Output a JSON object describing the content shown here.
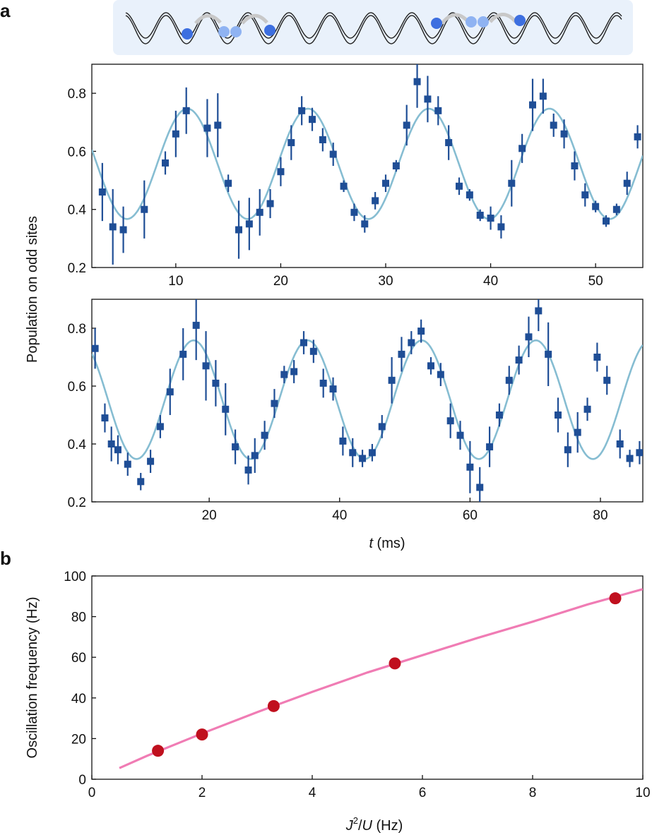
{
  "panel_labels": {
    "a": "a",
    "b": "b"
  },
  "colors": {
    "marker_a": "#1f4e96",
    "fit_a": "#86bdd2",
    "marker_b": "#c0101e",
    "fit_b": "#f07cb4",
    "schematic_bg": "#e9f1fb",
    "atom_dark": "#3d6fe0",
    "atom_light": "#8fb3f2"
  },
  "chart_data": [
    {
      "id": "a-top",
      "type": "scatter",
      "title": "",
      "xlabel": "",
      "ylabel": "Population on odd sites",
      "xlim": [
        2,
        54.5
      ],
      "ylim": [
        0.2,
        0.9
      ],
      "xticks": [
        10,
        20,
        30,
        40,
        50
      ],
      "yticks": [
        0.2,
        0.4,
        0.6,
        0.8
      ],
      "ytick_labels": [
        "0.2",
        "0.4",
        "0.6",
        "0.8"
      ],
      "fit": {
        "mean": 0.557,
        "amplitude": 0.19,
        "period_ms": 11.5,
        "peak_t_ms": 11.1
      },
      "x": [
        3,
        4,
        5,
        7,
        9,
        10,
        11,
        13,
        14,
        15,
        16,
        17,
        18,
        19,
        20,
        21,
        22,
        23,
        24,
        25,
        26,
        27,
        28,
        29,
        30,
        31,
        32,
        33,
        34,
        35,
        36,
        37,
        38,
        39,
        40,
        41,
        42,
        43,
        44,
        45,
        46,
        47,
        48,
        49,
        50,
        51,
        52,
        53,
        54
      ],
      "y": [
        0.46,
        0.34,
        0.33,
        0.4,
        0.56,
        0.66,
        0.74,
        0.68,
        0.69,
        0.49,
        0.33,
        0.35,
        0.39,
        0.42,
        0.53,
        0.63,
        0.74,
        0.71,
        0.64,
        0.59,
        0.48,
        0.39,
        0.35,
        0.43,
        0.49,
        0.55,
        0.69,
        0.84,
        0.78,
        0.74,
        0.63,
        0.48,
        0.45,
        0.38,
        0.37,
        0.34,
        0.49,
        0.61,
        0.76,
        0.79,
        0.69,
        0.66,
        0.55,
        0.45,
        0.41,
        0.36,
        0.4,
        0.49,
        0.65
      ],
      "yerr": [
        0.1,
        0.13,
        0.08,
        0.1,
        0.04,
        0.08,
        0.08,
        0.1,
        0.11,
        0.03,
        0.1,
        0.09,
        0.08,
        0.05,
        0.05,
        0.06,
        0.05,
        0.04,
        0.04,
        0.04,
        0.02,
        0.03,
        0.03,
        0.03,
        0.03,
        0.02,
        0.07,
        0.09,
        0.08,
        0.05,
        0.06,
        0.03,
        0.02,
        0.02,
        0.04,
        0.04,
        0.08,
        0.05,
        0.09,
        0.06,
        0.04,
        0.05,
        0.05,
        0.04,
        0.02,
        0.02,
        0.02,
        0.04,
        0.04
      ]
    },
    {
      "id": "a-bottom",
      "type": "scatter",
      "title": "",
      "xlabel": "t (ms)",
      "ylabel": "Population on odd sites",
      "xlim": [
        2,
        86.5
      ],
      "ylim": [
        0.2,
        0.9
      ],
      "xticks": [
        20,
        40,
        60,
        80
      ],
      "yticks": [
        0.2,
        0.4,
        0.6,
        0.8
      ],
      "ytick_labels": [
        "0.2",
        "0.4",
        "0.6",
        "0.8"
      ],
      "fit": {
        "mean": 0.553,
        "amplitude": 0.205,
        "period_ms": 17.5,
        "peak_t_ms": 17.6
      },
      "x": [
        2.5,
        4,
        5,
        6,
        7.5,
        9.5,
        11,
        12.5,
        14,
        16,
        18,
        19.5,
        21,
        22.5,
        24,
        26,
        27,
        28.5,
        30,
        31.5,
        33,
        34.5,
        36,
        37.5,
        39,
        40.5,
        42,
        43.5,
        45,
        46.5,
        48,
        49.5,
        51,
        52.5,
        54,
        55.5,
        57,
        58.5,
        60,
        61.5,
        63,
        64.5,
        66,
        67.5,
        69,
        70.5,
        72,
        73.5,
        75,
        76.5,
        78,
        79.5,
        81,
        83,
        84.5,
        86
      ],
      "y": [
        0.73,
        0.49,
        0.4,
        0.38,
        0.33,
        0.27,
        0.34,
        0.46,
        0.58,
        0.71,
        0.81,
        0.67,
        0.61,
        0.52,
        0.39,
        0.31,
        0.36,
        0.43,
        0.54,
        0.64,
        0.65,
        0.75,
        0.72,
        0.61,
        0.59,
        0.41,
        0.37,
        0.35,
        0.37,
        0.46,
        0.62,
        0.71,
        0.75,
        0.79,
        0.67,
        0.64,
        0.48,
        0.43,
        0.32,
        0.25,
        0.39,
        0.5,
        0.62,
        0.69,
        0.77,
        0.86,
        0.71,
        0.5,
        0.38,
        0.44,
        0.52,
        0.7,
        0.62,
        0.4,
        0.35,
        0.37
      ],
      "yerr": [
        0.07,
        0.05,
        0.06,
        0.05,
        0.04,
        0.03,
        0.04,
        0.04,
        0.08,
        0.09,
        0.12,
        0.12,
        0.08,
        0.09,
        0.06,
        0.05,
        0.06,
        0.05,
        0.05,
        0.03,
        0.04,
        0.04,
        0.04,
        0.05,
        0.04,
        0.05,
        0.05,
        0.03,
        0.03,
        0.04,
        0.08,
        0.06,
        0.04,
        0.04,
        0.03,
        0.04,
        0.06,
        0.05,
        0.09,
        0.07,
        0.07,
        0.04,
        0.05,
        0.05,
        0.07,
        0.07,
        0.11,
        0.06,
        0.06,
        0.07,
        0.04,
        0.05,
        0.05,
        0.05,
        0.03,
        0.04
      ]
    },
    {
      "id": "b",
      "type": "scatter",
      "title": "",
      "xlabel": "J²/U (Hz)",
      "ylabel": "Oscillation frequency (Hz)",
      "xlim": [
        0,
        10
      ],
      "ylim": [
        0,
        100
      ],
      "xticks": [
        0,
        2,
        4,
        6,
        8,
        10
      ],
      "yticks": [
        0,
        20,
        40,
        60,
        80,
        100
      ],
      "x": [
        1.2,
        2.0,
        3.3,
        5.5,
        9.5
      ],
      "y": [
        14,
        22,
        36,
        57,
        89
      ],
      "fit_line": {
        "x": [
          0.5,
          1,
          2,
          3,
          4,
          5,
          6,
          7,
          8,
          9,
          10
        ],
        "y": [
          5.5,
          11.5,
          22.5,
          33,
          43,
          52.5,
          61,
          69.5,
          77.5,
          86,
          93.5
        ]
      }
    }
  ]
}
